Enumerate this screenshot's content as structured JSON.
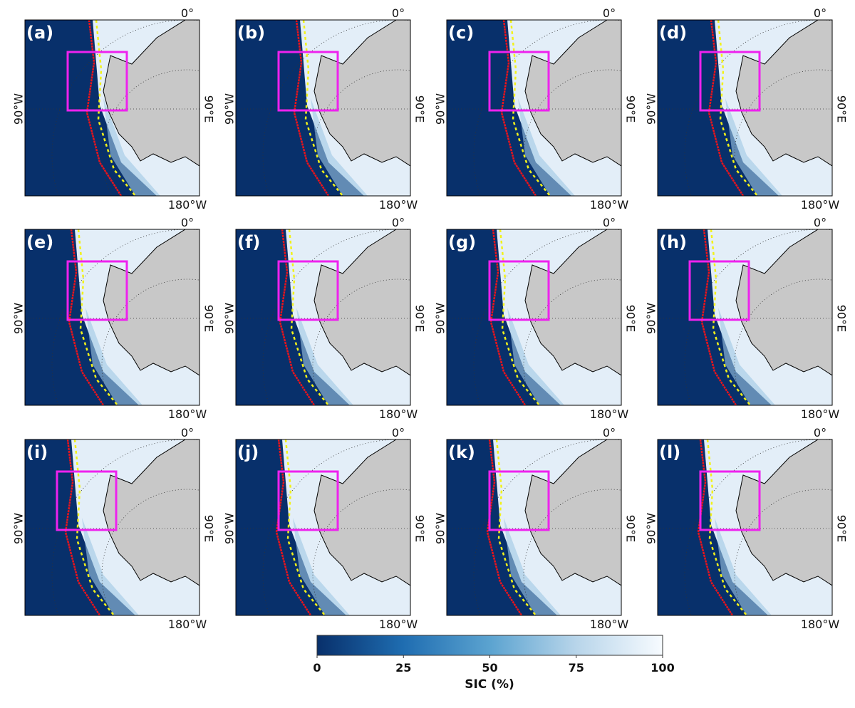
{
  "panels": [
    {
      "label": "(a)"
    },
    {
      "label": "(b)"
    },
    {
      "label": "(c)"
    },
    {
      "label": "(d)"
    },
    {
      "label": "(e)"
    },
    {
      "label": "(f)"
    },
    {
      "label": "(g)"
    },
    {
      "label": "(h)"
    },
    {
      "label": "(i)"
    },
    {
      "label": "(j)"
    },
    {
      "label": "(k)"
    },
    {
      "label": "(l)"
    }
  ],
  "map_labels": {
    "top": "0°",
    "left": "90°W",
    "right": "90°E",
    "bottom": "180°W"
  },
  "colorbar": {
    "label": "SIC (%)",
    "lim": [
      0,
      100
    ],
    "ticks": [
      0,
      25,
      50,
      75,
      100
    ]
  }
}
